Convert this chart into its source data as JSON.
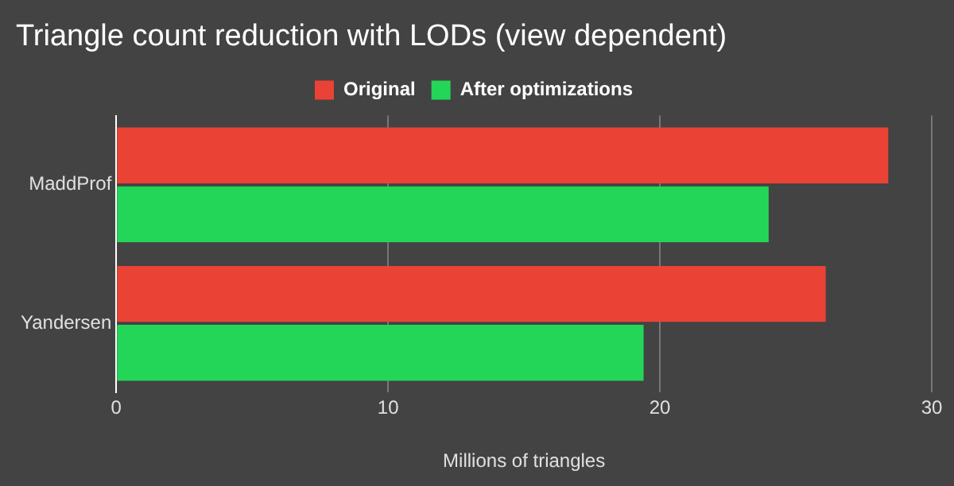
{
  "chart_data": {
    "type": "bar",
    "orientation": "horizontal",
    "title": "Triangle count reduction with LODs (view dependent)",
    "xlabel": "Millions of triangles",
    "categories": [
      "MaddProf",
      "Yandersen"
    ],
    "series": [
      {
        "name": "Original",
        "color": "#ea4335",
        "values": [
          28.4,
          26.1
        ]
      },
      {
        "name": "After optimizations",
        "color": "#23d658",
        "values": [
          24.0,
          19.4
        ]
      }
    ],
    "xlim": [
      0,
      30
    ],
    "xticks": [
      0,
      10,
      20,
      30
    ],
    "grid": "x",
    "legend": "top"
  }
}
